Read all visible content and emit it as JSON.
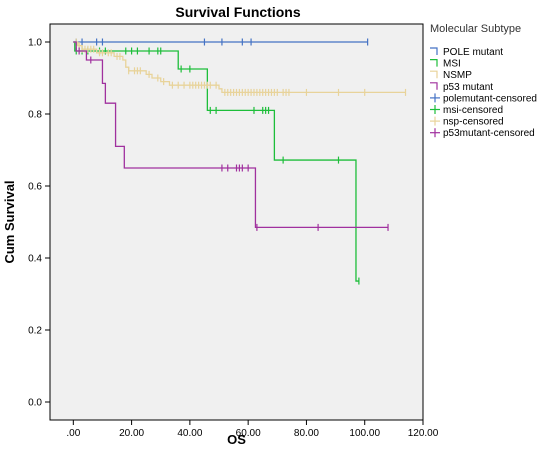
{
  "colors": {
    "plot_bg": "#F0F0F0",
    "pole": "#4472C4",
    "msi": "#1DBE3A",
    "nsmp": "#E8D39A",
    "p53": "#A0309E"
  },
  "chart_data": {
    "type": "line",
    "title": "Survival Functions",
    "xlabel": "OS",
    "ylabel": "Cum Survival",
    "xlim": [
      -8,
      120
    ],
    "ylim": [
      -0.05,
      1.05
    ],
    "x_ticks": [
      0,
      20,
      40,
      60,
      80,
      100,
      120
    ],
    "x_tick_labels": [
      ".00",
      "20.00",
      "40.00",
      "60.00",
      "80.00",
      "100.00",
      "120.00"
    ],
    "y_ticks": [
      0,
      0.2,
      0.4,
      0.6,
      0.8,
      1.0
    ],
    "y_tick_labels": [
      "0.0",
      "0.2",
      "0.4",
      "0.6",
      "0.8",
      "1.0"
    ],
    "grid": false,
    "legend_title": "Molecular Subtype",
    "legend_position": "right",
    "series": [
      {
        "name": "POLE mutant",
        "color": "#4472C4",
        "steps": [
          [
            0,
            1.0
          ],
          [
            101,
            1.0
          ]
        ],
        "censored_name": "polemutant-censored",
        "censored_x": [
          1,
          3,
          8,
          10,
          45,
          51,
          58,
          61,
          101
        ]
      },
      {
        "name": "MSI",
        "color": "#1DBE3A",
        "steps": [
          [
            0,
            1.0
          ],
          [
            0.5,
            0.975
          ],
          [
            35,
            0.975
          ],
          [
            36,
            0.925
          ],
          [
            45,
            0.925
          ],
          [
            46,
            0.81
          ],
          [
            68,
            0.81
          ],
          [
            69,
            0.672
          ],
          [
            96,
            0.672
          ],
          [
            97,
            0.336
          ],
          [
            98,
            0.336
          ]
        ],
        "censored_name": "msi-censored",
        "censored_x": [
          1,
          3,
          5,
          9,
          11,
          18,
          20,
          22,
          26,
          29,
          30,
          37,
          40,
          47,
          49,
          62,
          65,
          66,
          67,
          72,
          91,
          98
        ]
      },
      {
        "name": "NSMP",
        "color": "#E8D39A",
        "steps": [
          [
            0,
            1.0
          ],
          [
            1.5,
            0.99
          ],
          [
            3,
            0.98
          ],
          [
            8,
            0.97
          ],
          [
            14,
            0.96
          ],
          [
            17,
            0.95
          ],
          [
            18,
            0.93
          ],
          [
            19,
            0.92
          ],
          [
            25,
            0.91
          ],
          [
            27,
            0.9
          ],
          [
            30,
            0.89
          ],
          [
            33,
            0.88
          ],
          [
            50,
            0.87
          ],
          [
            51,
            0.86
          ],
          [
            114,
            0.86
          ]
        ],
        "censored_name": "nsp-censored",
        "censored_x": [
          1,
          2,
          3,
          4,
          5,
          6,
          7,
          9,
          10,
          12,
          13,
          15,
          16,
          19,
          21,
          22,
          23,
          26,
          29,
          31,
          34,
          36,
          38,
          40,
          41,
          42,
          43,
          44,
          45,
          46,
          47,
          49,
          52,
          53,
          54,
          55,
          56,
          57,
          58,
          59,
          60,
          61,
          62,
          63,
          64,
          65,
          66,
          67,
          68,
          69,
          70,
          72,
          73,
          74,
          80,
          91,
          100,
          114
        ]
      },
      {
        "name": "p53 mutant",
        "color": "#A0309E",
        "steps": [
          [
            0,
            1.0
          ],
          [
            1,
            0.975
          ],
          [
            4,
            0.975
          ],
          [
            4.5,
            0.95
          ],
          [
            9,
            0.95
          ],
          [
            10,
            0.885
          ],
          [
            11,
            0.83
          ],
          [
            14,
            0.83
          ],
          [
            14.5,
            0.71
          ],
          [
            17,
            0.71
          ],
          [
            17.5,
            0.65
          ],
          [
            62,
            0.65
          ],
          [
            62.5,
            0.485
          ],
          [
            108,
            0.485
          ]
        ],
        "censored_name": "p53mutant-censored",
        "censored_x": [
          2,
          6,
          51,
          53,
          56,
          57,
          58,
          60,
          63,
          84,
          108
        ]
      }
    ]
  }
}
